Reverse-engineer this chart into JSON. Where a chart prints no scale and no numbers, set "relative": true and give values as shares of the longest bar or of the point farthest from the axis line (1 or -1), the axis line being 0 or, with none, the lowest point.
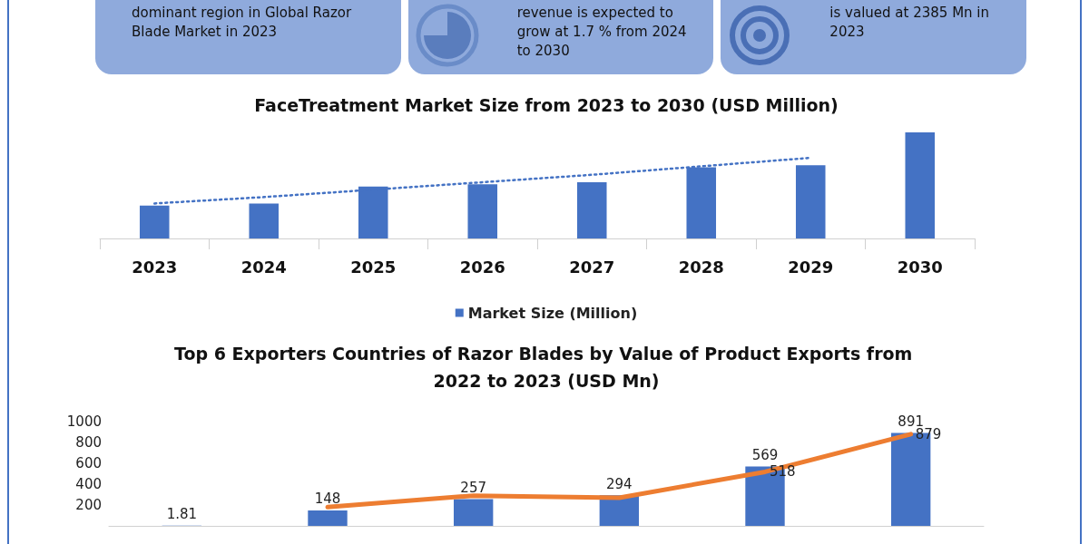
{
  "chart_data": [
    {
      "type": "other",
      "annotations": [
        "dominant region in Global Razor Blade Market in 2023",
        "revenue is expected to grow at 1.7 % from 2024 to 2030",
        "is valued at 2385 Mn in 2023"
      ]
    },
    {
      "type": "bar",
      "title": "FaceTreatment Market Size from 2023 to 2030 (USD Million)",
      "categories": [
        "2023",
        "2024",
        "2025",
        "2026",
        "2027",
        "2028",
        "2029",
        "2030"
      ],
      "relative": true,
      "legend": "bottom",
      "grid": false,
      "series": [
        {
          "name": "Market Size (Million)",
          "color": "#4472c4",
          "values": [
            0.31,
            0.33,
            0.49,
            0.51,
            0.53,
            0.67,
            0.69,
            1
          ]
        },
        {
          "type": "line",
          "color": "#4472c4",
          "line_style": "dotted",
          "marker": "none",
          "values": [
            0.33,
            0.39,
            0.46,
            0.53,
            0.6,
            0.68,
            0.76,
            null
          ]
        }
      ]
    },
    {
      "type": "bar",
      "title": "Top 6 Exporters Countries of Razor Blades by Value of Product Exports from 2022 to 2023 (USD Mn)",
      "categories": [
        null,
        null,
        null,
        null,
        null,
        null
      ],
      "ylim": [
        0,
        1000
      ],
      "yticks": [
        200,
        400,
        600,
        800,
        1000
      ],
      "grid": false,
      "series": [
        {
          "color": "#4472c4",
          "values": [
            1.81,
            148,
            257,
            294,
            569,
            891
          ],
          "value_labels": [
            "1.81",
            "148",
            "257",
            "294",
            "569",
            "891"
          ]
        },
        {
          "type": "line",
          "color": "#ed7d31",
          "marker": "none",
          "values": [
            null,
            180,
            290,
            270,
            518,
            879
          ],
          "value_labels": [
            null,
            null,
            null,
            null,
            "518",
            "879"
          ]
        }
      ]
    }
  ]
}
